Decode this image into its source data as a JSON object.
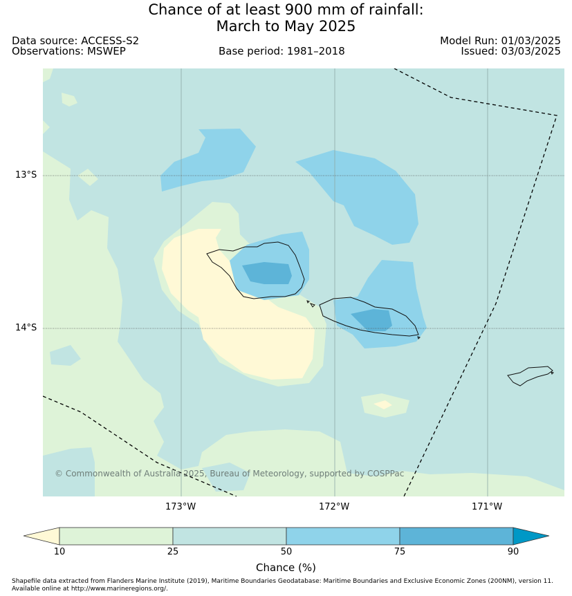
{
  "title": {
    "line1": "Chance of at least 900 mm of rainfall:",
    "line2": "March to May 2025"
  },
  "header": {
    "data_source": "Data source: ACCESS-S2",
    "observations": "Observations: MSWEP",
    "base_period": "Base period: 1981–2018",
    "model_run": "Model Run: 01/03/2025",
    "issued": "Issued: 03/03/2025"
  },
  "map": {
    "lat_ticks": [
      "13°S",
      "14°S"
    ],
    "lon_ticks": [
      "173°W",
      "172°W",
      "171°W"
    ],
    "copyright": "© Commonwealth of Australia 2025, Bureau of Meteorology, supported by COSPPac",
    "colors": {
      "lt10": "#fff9d6",
      "c10_25": "#def3d8",
      "c25_50": "#c1e4e2",
      "c50_75": "#8fd3ea",
      "c75_90": "#5db4d8",
      "gt90": "#0098c6"
    }
  },
  "colorbar": {
    "label": "Chance (%)",
    "ticks": [
      "10",
      "25",
      "50",
      "75",
      "90"
    ]
  },
  "footer": {
    "line1": "Shapefile data extracted from Flanders Marine Institute (2019), Maritime Boundaries Geodatabase: Maritime Boundaries and Exclusive Economic Zones (200NM), version 11.",
    "line2": "Available online at http://www.marineregions.org/."
  }
}
